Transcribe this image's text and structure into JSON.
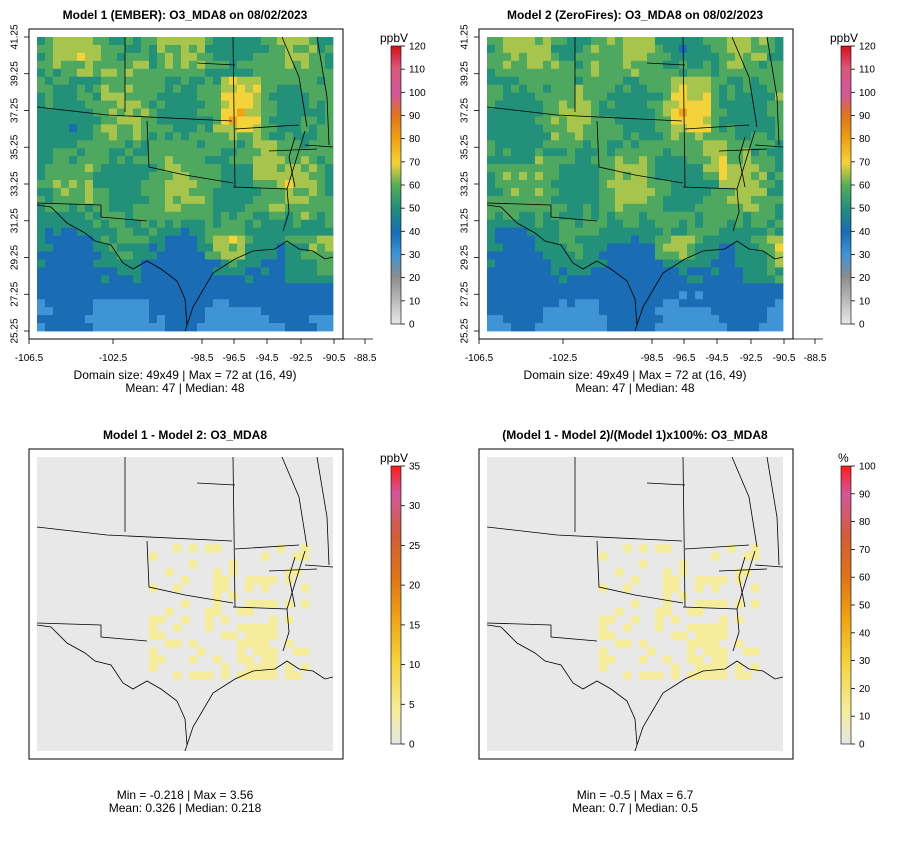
{
  "axes": {
    "x_ticks": [
      "-106.5",
      "-102.5",
      "-98.5",
      "-96.5",
      "-94.5",
      "-92.5",
      "-90.5",
      "-88.5"
    ],
    "y_ticks": [
      "25.25",
      "27.25",
      "29.25",
      "31.25",
      "33.25",
      "35.25",
      "37.25",
      "39.25",
      "41.25"
    ]
  },
  "colors": {
    "ozone_scale": [
      "#d8d8d8",
      "#9a9a9a",
      "#3f94d6",
      "#1a6cb4",
      "#23907a",
      "#4fa860",
      "#a7c44d",
      "#f4d23a",
      "#f0a315",
      "#dd7420",
      "#d0589a",
      "#e3201b"
    ],
    "diff_scale": [
      "#e8e8e8",
      "#f5ec9c",
      "#f4d23a",
      "#f0a315",
      "#e07818",
      "#cf5e3a",
      "#d0589a",
      "#ff1a1a"
    ],
    "land_bg": "#e8e8e8"
  },
  "panels": [
    {
      "title": "Model 1 (EMBER): O3_MDA8 on 08/02/2023",
      "unit": "ppbV",
      "legend_ticks": [
        "120",
        "110",
        "100",
        "90",
        "80",
        "70",
        "60",
        "50",
        "40",
        "30",
        "20",
        "10",
        "0"
      ],
      "stat_line1": "Domain size: 49x49 | Max = 72 at (16, 49)",
      "stat_line2": "Mean: 47 |  Median: 48",
      "show_axes": true
    },
    {
      "title": "Model 2 (ZeroFires): O3_MDA8 on 08/02/2023",
      "unit": "ppbV",
      "legend_ticks": [
        "120",
        "110",
        "100",
        "90",
        "80",
        "70",
        "60",
        "50",
        "40",
        "30",
        "20",
        "10",
        "0"
      ],
      "stat_line1": "Domain size: 49x49 | Max = 72 at (16, 49)",
      "stat_line2": "Mean: 47 |  Median: 48",
      "show_axes": true
    },
    {
      "title": "Model 1 - Model 2: O3_MDA8",
      "unit": "ppbV",
      "legend_ticks": [
        "35",
        "30",
        "25",
        "20",
        "15",
        "10",
        "5",
        "0"
      ],
      "stat_line1": "Min = -0.218 | Max = 3.56",
      "stat_line2": "Mean: 0.326 |  Median: 0.218",
      "show_axes": false
    },
    {
      "title": "(Model 1 - Model 2)/(Model 1)x100%: O3_MDA8",
      "unit": "%",
      "legend_ticks": [
        "100",
        "90",
        "80",
        "70",
        "60",
        "50",
        "40",
        "30",
        "20",
        "10",
        "0"
      ],
      "stat_line1": "Min = -0.5 | Max = 6.7",
      "stat_line2": "Mean: 0.7 |  Median: 0.5",
      "show_axes": false
    }
  ]
}
